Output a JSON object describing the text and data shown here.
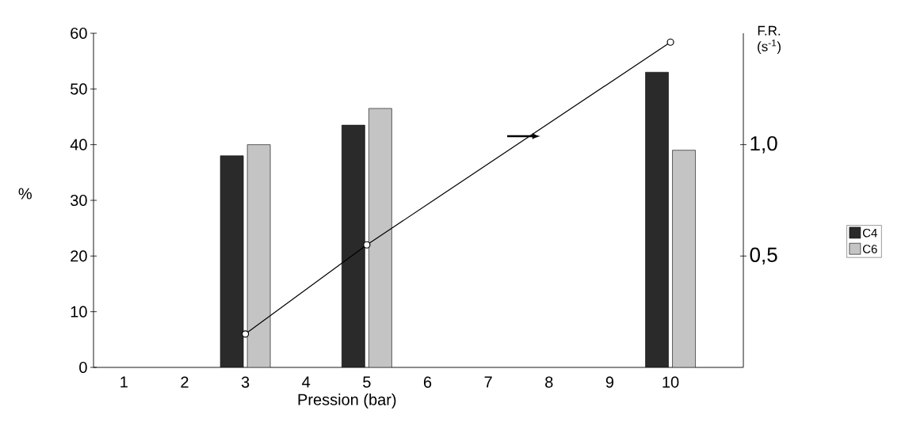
{
  "chart_data": {
    "type": "bar",
    "xlabel": "Pression (bar)",
    "ylabel": "%",
    "y2label": "F.R. (s$^{-1}$)",
    "categories": [
      "1",
      "2",
      "3",
      "4",
      "5",
      "6",
      "7",
      "8",
      "9",
      "10"
    ],
    "series": [
      {
        "name": "C4",
        "color": "#2a2a2a",
        "values": [
          null,
          null,
          38,
          null,
          43.5,
          null,
          null,
          null,
          null,
          53
        ]
      },
      {
        "name": "C6",
        "color": "#c4c4c4",
        "values": [
          null,
          null,
          40,
          null,
          46.5,
          null,
          null,
          null,
          null,
          39
        ]
      },
      {
        "type": "line",
        "axis": "y2",
        "color": "#000000",
        "marker": "circle",
        "values": [
          null,
          null,
          0.15,
          null,
          0.55,
          null,
          null,
          null,
          null,
          1.46
        ]
      }
    ],
    "ylim": [
      0,
      60
    ],
    "yticks": [
      0,
      10,
      20,
      30,
      40,
      50,
      60
    ],
    "y2lim": [
      0,
      1.5
    ],
    "y2ticks": [
      {
        "value": 0.5,
        "label": "0,5"
      },
      {
        "value": 1.0,
        "label": "1,0"
      }
    ],
    "legend": "right"
  }
}
